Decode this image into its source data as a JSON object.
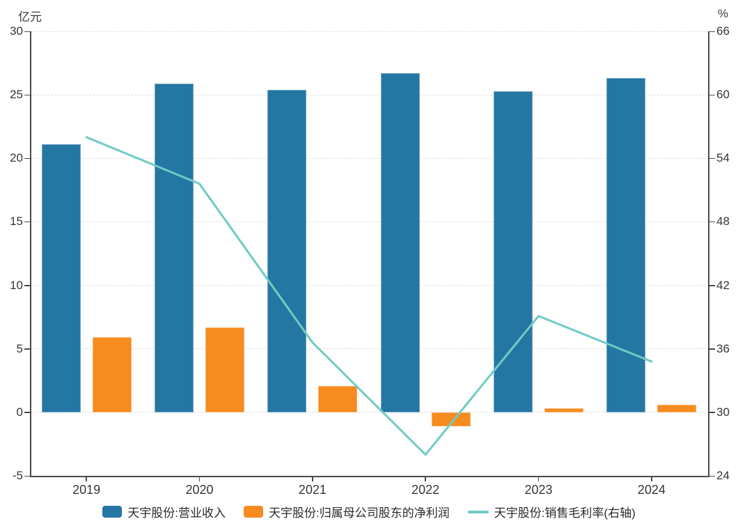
{
  "chart_data": {
    "type": "bar",
    "subtype": "grouped-bar-with-line-dual-axis",
    "categories": [
      "2019",
      "2020",
      "2021",
      "2022",
      "2023",
      "2024"
    ],
    "series": [
      {
        "name": "天宇股份:营业收入",
        "type": "bar",
        "axis": "left",
        "color": "#2577A3",
        "values": [
          21.1,
          25.9,
          25.4,
          26.7,
          25.3,
          26.3
        ]
      },
      {
        "name": "天宇股份:归属母公司股东的净利润",
        "type": "bar",
        "axis": "left",
        "color": "#F68B1F",
        "values": [
          5.9,
          6.7,
          2.1,
          -1.1,
          0.3,
          0.6
        ]
      },
      {
        "name": "天宇股份:销售毛利率(右轴)",
        "type": "line",
        "axis": "right",
        "color": "#6FCBC4",
        "values": [
          56.0,
          51.6,
          36.6,
          26.0,
          39.1,
          34.8
        ]
      }
    ],
    "left_axis": {
      "label": "亿元",
      "min": -5,
      "max": 30,
      "ticks": [
        30,
        25,
        20,
        15,
        10,
        5,
        0,
        -5
      ]
    },
    "right_axis": {
      "label": "%",
      "min": 24,
      "max": 66,
      "ticks": [
        66,
        60,
        54,
        48,
        42,
        36,
        30,
        24
      ]
    },
    "grid": "horizontal dashed",
    "legend_position": "bottom",
    "title": "",
    "xlabel": "",
    "ylabel": "亿元 / %"
  },
  "legend": {
    "items": [
      {
        "label": "天宇股份:营业收入",
        "color": "#2577A3",
        "marker": "square"
      },
      {
        "label": "天宇股份:归属母公司股东的净利润",
        "color": "#F68B1F",
        "marker": "square"
      },
      {
        "label": "天宇股份:销售毛利率(右轴)",
        "color": "#6FCBC4",
        "marker": "line"
      }
    ]
  }
}
